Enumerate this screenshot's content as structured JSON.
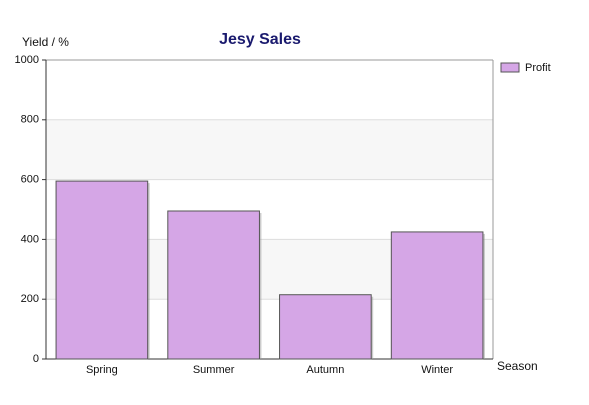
{
  "chart_data": {
    "type": "bar",
    "title": "Jesy Sales",
    "y_label": "Yield / %",
    "x_label": "Season",
    "categories": [
      "Spring",
      "Summer",
      "Autumn",
      "Winter"
    ],
    "series": [
      {
        "name": "Profit",
        "color": "#d5a6e6",
        "values": [
          595,
          495,
          215,
          425
        ]
      }
    ],
    "ylim": [
      0,
      1000
    ],
    "yticks": [
      0,
      200,
      400,
      600,
      800,
      1000
    ],
    "grid": true,
    "legend": "top-right"
  }
}
